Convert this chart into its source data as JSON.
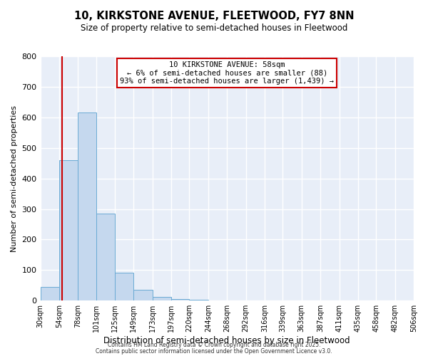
{
  "title": "10, KIRKSTONE AVENUE, FLEETWOOD, FY7 8NN",
  "subtitle": "Size of property relative to semi-detached houses in Fleetwood",
  "xlabel": "Distribution of semi-detached houses by size in Fleetwood",
  "ylabel": "Number of semi-detached properties",
  "bar_edges": [
    30,
    54,
    78,
    101,
    125,
    149,
    173,
    197,
    220,
    244,
    268,
    292,
    316,
    339,
    363,
    387,
    411,
    435,
    458,
    482,
    506
  ],
  "bar_heights": [
    45,
    460,
    615,
    285,
    92,
    35,
    12,
    5,
    3,
    0,
    0,
    0,
    0,
    0,
    0,
    0,
    0,
    0,
    0,
    0
  ],
  "bar_color": "#c5d8ee",
  "bar_edge_color": "#6aaad4",
  "property_line_x": 58,
  "property_line_color": "#cc0000",
  "annotation_title": "10 KIRKSTONE AVENUE: 58sqm",
  "annotation_line1": "← 6% of semi-detached houses are smaller (88)",
  "annotation_line2": "93% of semi-detached houses are larger (1,439) →",
  "annotation_box_color": "#cc0000",
  "ylim": [
    0,
    800
  ],
  "yticks": [
    0,
    100,
    200,
    300,
    400,
    500,
    600,
    700,
    800
  ],
  "tick_labels": [
    "30sqm",
    "54sqm",
    "78sqm",
    "101sqm",
    "125sqm",
    "149sqm",
    "173sqm",
    "197sqm",
    "220sqm",
    "244sqm",
    "268sqm",
    "292sqm",
    "316sqm",
    "339sqm",
    "363sqm",
    "387sqm",
    "411sqm",
    "435sqm",
    "458sqm",
    "482sqm",
    "506sqm"
  ],
  "footer1": "Contains HM Land Registry data © Crown copyright and database right 2025.",
  "footer2": "Contains public sector information licensed under the Open Government Licence v3.0.",
  "background_color": "#ffffff",
  "plot_background": "#e8eef8"
}
